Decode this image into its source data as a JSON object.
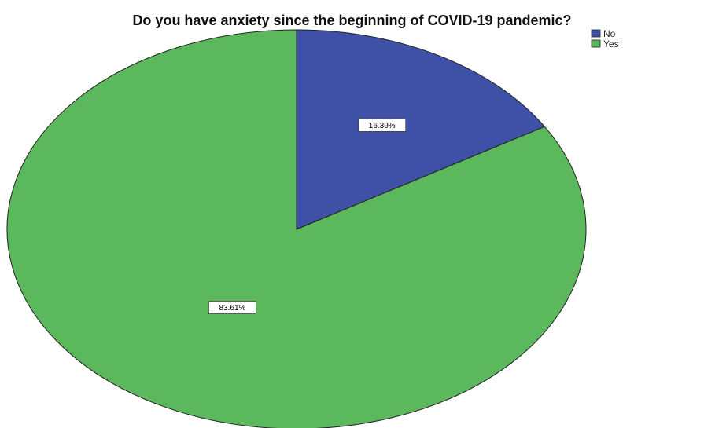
{
  "chart_data": {
    "type": "pie",
    "title": "Do you have anxiety since the beginning of COVID-19 pandemic?",
    "slices": [
      {
        "label": "No",
        "value": 16.39,
        "display": "16.39%",
        "color": "#3f51a6"
      },
      {
        "label": "Yes",
        "value": 83.61,
        "display": "83.61%",
        "color": "#5cb85c"
      }
    ],
    "start_angle_deg": 0,
    "direction": "clockwise",
    "legend": {
      "position": "top-right",
      "entries": [
        "No",
        "Yes"
      ]
    }
  }
}
